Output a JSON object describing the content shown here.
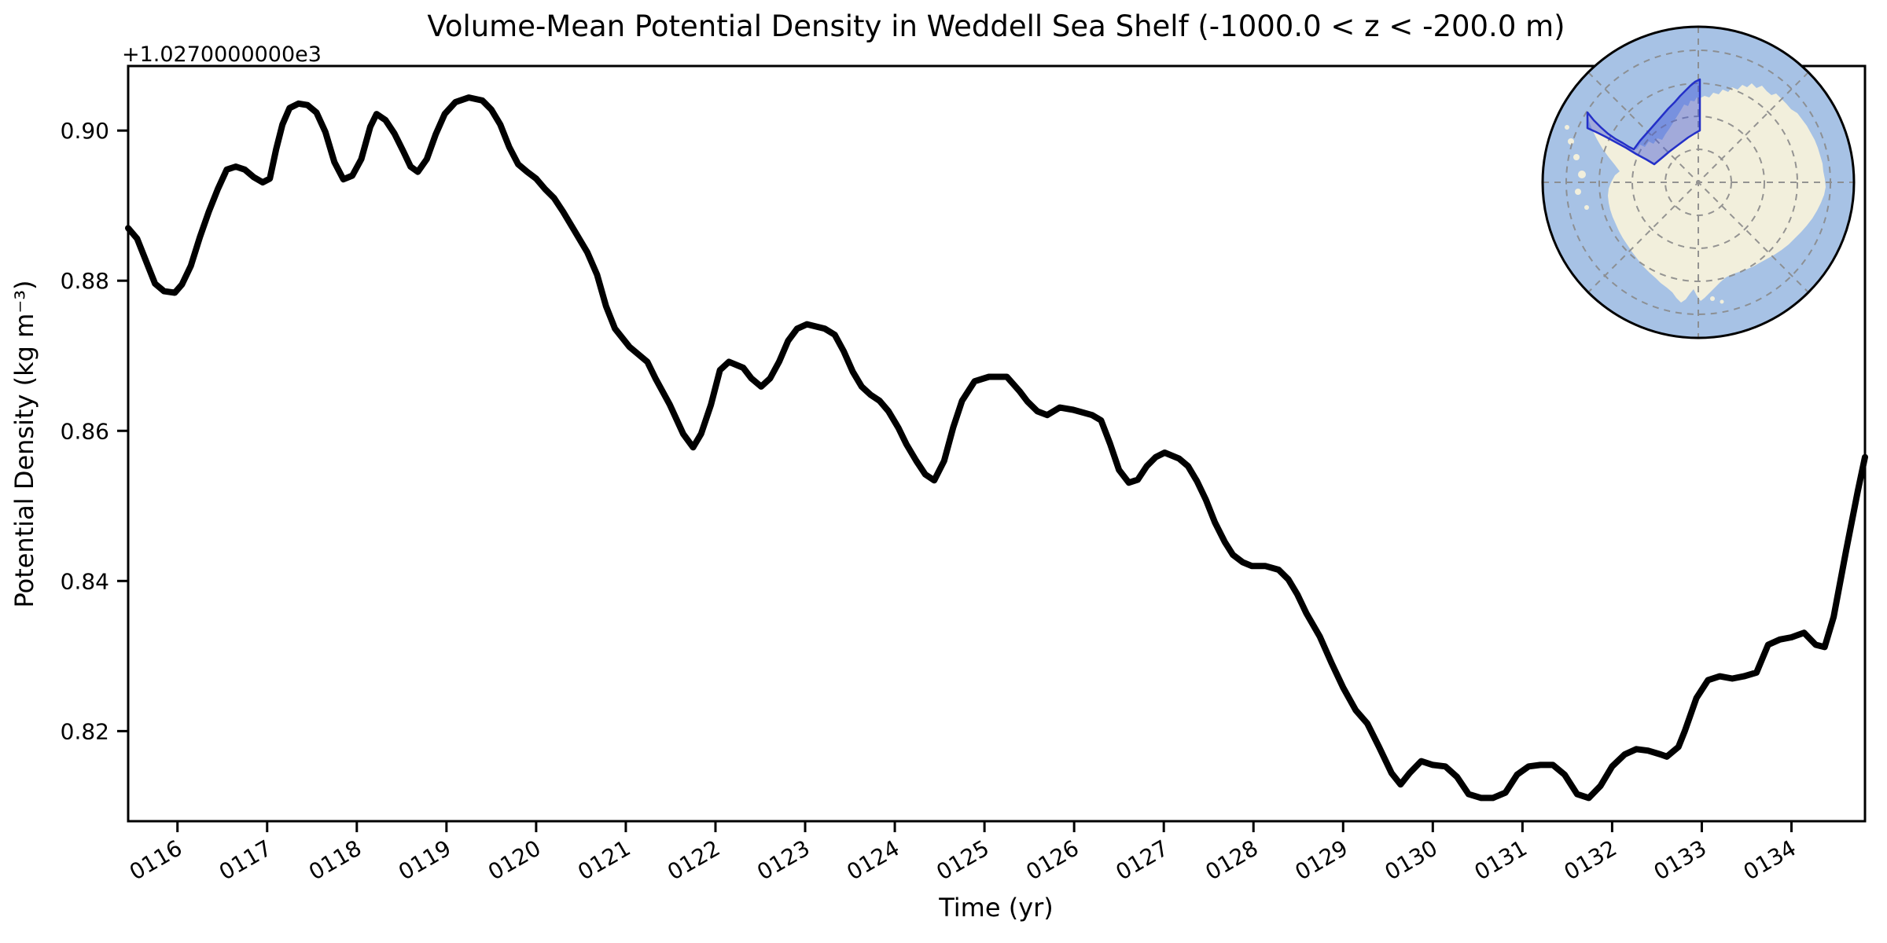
{
  "figure": {
    "title": "Volume-Mean Potential Density in Weddell Sea Shelf (-1000.0 < z < -200.0 m)",
    "offset_text": "+1.0270000000e3",
    "xlabel": "Time (yr)",
    "ylabel": "Potential Density (kg m⁻³)"
  },
  "chart_data": {
    "type": "line",
    "title": "Volume-Mean Potential Density in Weddell Sea Shelf (-1000.0 < z < -200.0 m)",
    "xlabel": "Time (yr)",
    "ylabel": "Potential Density (kg m⁻³)",
    "y_offset_base": 1027.0,
    "offset_label": "+1.0270000000e3",
    "x_tick_labels": [
      "0116",
      "0117",
      "0118",
      "0119",
      "0120",
      "0121",
      "0122",
      "0123",
      "0124",
      "0125",
      "0126",
      "0127",
      "0128",
      "0129",
      "0130",
      "0131",
      "0132",
      "0133",
      "0134"
    ],
    "x_ticks": [
      116,
      117,
      118,
      119,
      120,
      121,
      122,
      123,
      124,
      125,
      126,
      127,
      128,
      129,
      130,
      131,
      132,
      133,
      134
    ],
    "y_ticks": [
      0.82,
      0.84,
      0.86,
      0.88,
      0.9
    ],
    "xlim": [
      115.45,
      134.82
    ],
    "ylim": [
      0.808,
      0.9086
    ],
    "grid": false,
    "legend": null,
    "line_color": "#000000",
    "line_width": 8,
    "series_name": "volume-mean potential density",
    "points": [
      [
        115.45,
        0.887
      ],
      [
        115.55,
        0.8856
      ],
      [
        115.65,
        0.8826
      ],
      [
        115.75,
        0.8796
      ],
      [
        115.85,
        0.8786
      ],
      [
        115.97,
        0.8784
      ],
      [
        116.05,
        0.8795
      ],
      [
        116.15,
        0.882
      ],
      [
        116.25,
        0.8858
      ],
      [
        116.35,
        0.8892
      ],
      [
        116.45,
        0.8922
      ],
      [
        116.55,
        0.8948
      ],
      [
        116.65,
        0.8952
      ],
      [
        116.75,
        0.8948
      ],
      [
        116.85,
        0.8938
      ],
      [
        116.95,
        0.8931
      ],
      [
        117.03,
        0.8936
      ],
      [
        117.1,
        0.8975
      ],
      [
        117.17,
        0.9008
      ],
      [
        117.25,
        0.903
      ],
      [
        117.35,
        0.9036
      ],
      [
        117.45,
        0.9034
      ],
      [
        117.55,
        0.9024
      ],
      [
        117.65,
        0.8998
      ],
      [
        117.75,
        0.8958
      ],
      [
        117.85,
        0.8935
      ],
      [
        117.95,
        0.894
      ],
      [
        118.05,
        0.8962
      ],
      [
        118.15,
        0.9005
      ],
      [
        118.22,
        0.9022
      ],
      [
        118.32,
        0.9014
      ],
      [
        118.42,
        0.8996
      ],
      [
        118.52,
        0.8972
      ],
      [
        118.6,
        0.8952
      ],
      [
        118.68,
        0.8945
      ],
      [
        118.78,
        0.8962
      ],
      [
        118.88,
        0.8995
      ],
      [
        118.98,
        0.9022
      ],
      [
        119.1,
        0.9038
      ],
      [
        119.25,
        0.9044
      ],
      [
        119.4,
        0.904
      ],
      [
        119.5,
        0.9028
      ],
      [
        119.6,
        0.9008
      ],
      [
        119.7,
        0.8978
      ],
      [
        119.8,
        0.8955
      ],
      [
        119.9,
        0.8945
      ],
      [
        120.0,
        0.8936
      ],
      [
        120.1,
        0.8922
      ],
      [
        120.2,
        0.891
      ],
      [
        120.3,
        0.8892
      ],
      [
        120.42,
        0.8868
      ],
      [
        120.57,
        0.8838
      ],
      [
        120.68,
        0.8808
      ],
      [
        120.78,
        0.8766
      ],
      [
        120.88,
        0.8736
      ],
      [
        121.04,
        0.8712
      ],
      [
        121.13,
        0.8703
      ],
      [
        121.24,
        0.8692
      ],
      [
        121.33,
        0.867
      ],
      [
        121.49,
        0.8635
      ],
      [
        121.64,
        0.8596
      ],
      [
        121.75,
        0.8578
      ],
      [
        121.84,
        0.8596
      ],
      [
        121.95,
        0.8635
      ],
      [
        122.05,
        0.8681
      ],
      [
        122.15,
        0.8692
      ],
      [
        122.31,
        0.8684
      ],
      [
        122.4,
        0.867
      ],
      [
        122.51,
        0.8659
      ],
      [
        122.61,
        0.867
      ],
      [
        122.71,
        0.8692
      ],
      [
        122.81,
        0.872
      ],
      [
        122.91,
        0.8736
      ],
      [
        123.02,
        0.8742
      ],
      [
        123.22,
        0.8736
      ],
      [
        123.33,
        0.8728
      ],
      [
        123.43,
        0.8706
      ],
      [
        123.53,
        0.8679
      ],
      [
        123.63,
        0.8659
      ],
      [
        123.73,
        0.8648
      ],
      [
        123.83,
        0.864
      ],
      [
        123.93,
        0.8626
      ],
      [
        124.04,
        0.8604
      ],
      [
        124.13,
        0.8582
      ],
      [
        124.24,
        0.856
      ],
      [
        124.34,
        0.8542
      ],
      [
        124.44,
        0.8534
      ],
      [
        124.55,
        0.856
      ],
      [
        124.65,
        0.8604
      ],
      [
        124.75,
        0.864
      ],
      [
        124.89,
        0.8666
      ],
      [
        125.05,
        0.8672
      ],
      [
        125.25,
        0.8672
      ],
      [
        125.39,
        0.8653
      ],
      [
        125.48,
        0.8639
      ],
      [
        125.59,
        0.8626
      ],
      [
        125.7,
        0.8621
      ],
      [
        125.84,
        0.8631
      ],
      [
        125.99,
        0.8628
      ],
      [
        126.2,
        0.8621
      ],
      [
        126.3,
        0.8614
      ],
      [
        126.4,
        0.8583
      ],
      [
        126.5,
        0.8548
      ],
      [
        126.61,
        0.8531
      ],
      [
        126.71,
        0.8535
      ],
      [
        126.81,
        0.8553
      ],
      [
        126.91,
        0.8565
      ],
      [
        127.01,
        0.8571
      ],
      [
        127.17,
        0.8563
      ],
      [
        127.27,
        0.8553
      ],
      [
        127.37,
        0.8533
      ],
      [
        127.47,
        0.8508
      ],
      [
        127.57,
        0.8478
      ],
      [
        127.68,
        0.8452
      ],
      [
        127.77,
        0.8435
      ],
      [
        127.88,
        0.8425
      ],
      [
        127.98,
        0.842
      ],
      [
        128.13,
        0.842
      ],
      [
        128.28,
        0.8415
      ],
      [
        128.39,
        0.8402
      ],
      [
        128.49,
        0.8382
      ],
      [
        128.59,
        0.8357
      ],
      [
        128.74,
        0.8326
      ],
      [
        128.87,
        0.8291
      ],
      [
        129.0,
        0.8258
      ],
      [
        129.14,
        0.8228
      ],
      [
        129.27,
        0.821
      ],
      [
        129.4,
        0.8179
      ],
      [
        129.54,
        0.8144
      ],
      [
        129.64,
        0.8129
      ],
      [
        129.74,
        0.8144
      ],
      [
        129.87,
        0.816
      ],
      [
        130.0,
        0.8155
      ],
      [
        130.14,
        0.8153
      ],
      [
        130.27,
        0.8139
      ],
      [
        130.4,
        0.8116
      ],
      [
        130.54,
        0.8111
      ],
      [
        130.67,
        0.8111
      ],
      [
        130.81,
        0.8118
      ],
      [
        130.94,
        0.8142
      ],
      [
        131.07,
        0.8153
      ],
      [
        131.2,
        0.8155
      ],
      [
        131.34,
        0.8155
      ],
      [
        131.47,
        0.8142
      ],
      [
        131.61,
        0.8116
      ],
      [
        131.74,
        0.8111
      ],
      [
        131.87,
        0.8127
      ],
      [
        132.0,
        0.8153
      ],
      [
        132.14,
        0.8169
      ],
      [
        132.27,
        0.8176
      ],
      [
        132.4,
        0.8174
      ],
      [
        132.54,
        0.8169
      ],
      [
        132.61,
        0.8166
      ],
      [
        132.74,
        0.8179
      ],
      [
        132.81,
        0.82
      ],
      [
        132.94,
        0.8244
      ],
      [
        133.07,
        0.8268
      ],
      [
        133.2,
        0.8273
      ],
      [
        133.34,
        0.827
      ],
      [
        133.47,
        0.8273
      ],
      [
        133.61,
        0.8278
      ],
      [
        133.74,
        0.8315
      ],
      [
        133.87,
        0.8322
      ],
      [
        134.0,
        0.8325
      ],
      [
        134.14,
        0.8331
      ],
      [
        134.27,
        0.8315
      ],
      [
        134.37,
        0.8312
      ],
      [
        134.47,
        0.8352
      ],
      [
        134.61,
        0.8441
      ],
      [
        134.74,
        0.852
      ],
      [
        134.82,
        0.8565
      ]
    ]
  },
  "inset_map": {
    "projection": "south-polar-stereographic",
    "ocean_color": "#a7c2e5",
    "land_color": "#f2efdc",
    "graticule_color": "#8a8a8a",
    "region_fill": "#4156d8",
    "region_fill_opacity": 0.45,
    "region_edge_color": "#2430c8",
    "border_color": "#000000"
  }
}
